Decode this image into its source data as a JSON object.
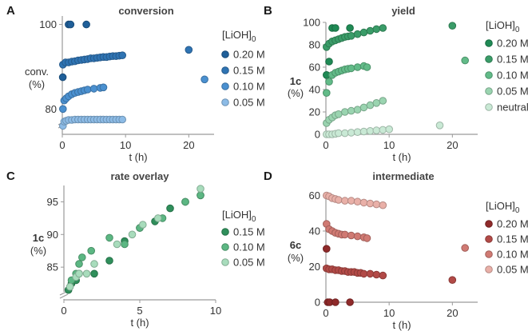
{
  "chart_data": [
    {
      "type": "scatter",
      "panel_letter": "A",
      "title": "conversion",
      "xlabel": "t (h)",
      "ylabel": [
        "conv.",
        "(%)"
      ],
      "xlim": [
        0,
        24
      ],
      "ylim": [
        74,
        102
      ],
      "y_axis_break": true,
      "xticks": [
        0,
        10,
        20
      ],
      "yticks": [
        80,
        100
      ],
      "grid": false,
      "legend": {
        "title": "[LiOH]",
        "title_subscript": "0",
        "placement": "right"
      },
      "series": [
        {
          "name": "0.20 M",
          "color": "#1f5f99",
          "x": [
            0.08,
            1,
            1.3,
            3.8
          ],
          "y": [
            87.5,
            100,
            100,
            100
          ]
        },
        {
          "name": "0.15 M",
          "color": "#2f74b3",
          "x": [
            0.1,
            0.5,
            1,
            1.5,
            2,
            2.5,
            3,
            3.5,
            4,
            4.5,
            5,
            5.5,
            6,
            6.5,
            7,
            7.5,
            8,
            8.5,
            9,
            9.5,
            20
          ],
          "y": [
            90.5,
            91,
            91,
            91.2,
            91.3,
            91.5,
            91.6,
            91.7,
            91.8,
            92,
            92,
            92.1,
            92.2,
            92.3,
            92.3,
            92.4,
            92.5,
            92.5,
            92.6,
            92.7,
            94
          ]
        },
        {
          "name": "0.10 M",
          "color": "#4a90d0",
          "x": [
            0.1,
            0.3,
            0.6,
            1,
            1.5,
            2,
            2.5,
            3,
            3.5,
            4,
            5,
            6,
            6.5,
            22.5
          ],
          "y": [
            80,
            82,
            82.5,
            83,
            83.5,
            83.8,
            84,
            84.2,
            84.4,
            84.6,
            84.8,
            85,
            85.1,
            87
          ]
        },
        {
          "name": "0.05 M",
          "color": "#8cbbe6",
          "x": [
            0.1,
            0.3,
            0.6,
            1,
            1.5,
            2,
            2.5,
            3,
            3.5,
            4,
            4.5,
            5,
            5.5,
            6,
            6.5,
            7,
            7.5,
            8,
            8.5,
            9,
            9.5
          ],
          "y": [
            76,
            77,
            77.2,
            77.4,
            77.4,
            77.5,
            77.5,
            77.5,
            77.5,
            77.5,
            77.5,
            77.5,
            77.5,
            77.5,
            77.5,
            77.5,
            77.5,
            77.5,
            77.5,
            77.5,
            77.5
          ]
        }
      ]
    },
    {
      "type": "scatter",
      "panel_letter": "B",
      "title": "yield",
      "xlabel": "t (h)",
      "ylabel": [
        "1c",
        "(%)"
      ],
      "xlim": [
        0,
        24
      ],
      "ylim": [
        0,
        100
      ],
      "xticks": [
        0,
        10,
        20
      ],
      "yticks": [
        0,
        20,
        40,
        60,
        80,
        100
      ],
      "grid": false,
      "legend": {
        "title": "[LiOH]",
        "title_subscript": "0",
        "placement": "right"
      },
      "series": [
        {
          "name": "0.20 M",
          "color": "#1f8a55",
          "x": [
            0.1,
            0.5,
            1,
            1.5,
            3.8
          ],
          "y": [
            53,
            65,
            95,
            95,
            95
          ]
        },
        {
          "name": "0.15 M",
          "color": "#3a9c68",
          "x": [
            0.1,
            0.5,
            1,
            1.5,
            2,
            2.5,
            3,
            3.5,
            4,
            5,
            6,
            7,
            8,
            9,
            20
          ],
          "y": [
            78,
            81,
            83,
            84,
            85,
            86,
            87,
            87.5,
            88,
            89.5,
            91,
            92.5,
            94,
            95,
            97
          ]
        },
        {
          "name": "0.10 M",
          "color": "#62bb88",
          "x": [
            0.1,
            0.5,
            1,
            1.5,
            2,
            2.5,
            3,
            3.5,
            4,
            5,
            6,
            6.5,
            22
          ],
          "y": [
            37,
            47,
            53,
            55,
            56,
            57,
            58,
            58.5,
            59,
            60,
            61,
            60,
            66
          ]
        },
        {
          "name": "0.05 M",
          "color": "#9ad4b0",
          "x": [
            0.1,
            0.5,
            1,
            1.5,
            2,
            3,
            4,
            5,
            6,
            7,
            8,
            9
          ],
          "y": [
            10,
            13,
            15,
            17,
            18,
            20,
            21,
            22,
            24,
            26,
            28,
            30
          ]
        },
        {
          "name": "neutral",
          "color": "#c9e9d5",
          "x": [
            0.1,
            0.5,
            1,
            1.5,
            2,
            3,
            4,
            5,
            6,
            7,
            8,
            9,
            10,
            18
          ],
          "y": [
            0,
            0,
            0,
            0.5,
            1,
            1,
            1.5,
            2,
            2.5,
            3,
            3.5,
            4,
            4.5,
            8
          ]
        }
      ]
    },
    {
      "type": "scatter",
      "panel_letter": "C",
      "title": "rate overlay",
      "xlabel": "t (h)",
      "ylabel": [
        "1c",
        "(%)"
      ],
      "xlim": [
        0,
        10
      ],
      "ylim": [
        80,
        97.5
      ],
      "y_axis_break": true,
      "xticks": [
        0,
        5,
        10
      ],
      "yticks": [
        85,
        90,
        95
      ],
      "grid": false,
      "legend": {
        "title": "[LiOH]",
        "title_subscript": "0",
        "placement": "right"
      },
      "series": [
        {
          "name": "0.15 M",
          "color": "#2f8f5b",
          "x": [
            0.3,
            0.5,
            0.8,
            1,
            2,
            3,
            4,
            5,
            6,
            7,
            8,
            9
          ],
          "y": [
            81.5,
            82.5,
            83,
            84,
            84,
            86,
            89,
            91,
            92,
            94,
            95,
            96
          ]
        },
        {
          "name": "0.10 M",
          "color": "#5cb783",
          "x": [
            0.5,
            0.8,
            1,
            1.2,
            1.8,
            3,
            4,
            5,
            6.5,
            8,
            9
          ],
          "y": [
            83,
            84,
            85.5,
            86.5,
            87.5,
            89.5,
            88.5,
            91,
            92.5,
            95,
            96
          ]
        },
        {
          "name": "0.05 M",
          "color": "#a8dcbc",
          "x": [
            0.4,
            0.8,
            1,
            1.5,
            2,
            3.5,
            4.5,
            5.2,
            6.2,
            9
          ],
          "y": [
            82,
            83.5,
            84,
            84,
            85.5,
            88.5,
            90,
            91.5,
            92.5,
            97
          ]
        }
      ]
    },
    {
      "type": "scatter",
      "panel_letter": "D",
      "title": "intermediate",
      "xlabel": "t (h)",
      "ylabel": [
        "6c",
        "(%)"
      ],
      "xlim": [
        0,
        24
      ],
      "ylim": [
        0,
        62
      ],
      "xticks": [
        0,
        10,
        20
      ],
      "yticks": [
        0,
        20,
        40,
        60
      ],
      "grid": false,
      "legend": {
        "title": "[LiOH]",
        "title_subscript": "0",
        "placement": "right"
      },
      "series": [
        {
          "name": "0.20 M",
          "color": "#8f2a2a",
          "x": [
            0.1,
            0.3,
            0.6,
            1.5,
            3.8
          ],
          "y": [
            30,
            0,
            0,
            0,
            0
          ]
        },
        {
          "name": "0.15 M",
          "color": "#b24a47",
          "x": [
            0.1,
            0.5,
            1,
            1.5,
            2,
            2.5,
            3,
            3.5,
            4,
            4.5,
            5,
            5.5,
            6,
            7,
            8,
            9,
            20
          ],
          "y": [
            19,
            18.5,
            18.5,
            18,
            18,
            17.5,
            17.5,
            17,
            17,
            17,
            16.5,
            16.5,
            16,
            16,
            15.5,
            15,
            12.5
          ]
        },
        {
          "name": "0.10 M",
          "color": "#d07a73",
          "x": [
            0.1,
            0.5,
            1,
            1.5,
            2,
            2.5,
            3,
            4,
            5,
            6,
            6.5,
            22
          ],
          "y": [
            44,
            41,
            40,
            39,
            38.5,
            38,
            38,
            37.5,
            37,
            36.5,
            36,
            30.5
          ]
        },
        {
          "name": "0.05 M",
          "color": "#e9b0a8",
          "x": [
            0.1,
            0.5,
            1,
            1.5,
            2,
            3,
            4,
            5,
            6,
            7,
            8,
            9
          ],
          "y": [
            60,
            59.5,
            58.5,
            58,
            57.5,
            57,
            57,
            56.5,
            56,
            55.5,
            55,
            54.5
          ]
        }
      ]
    }
  ]
}
